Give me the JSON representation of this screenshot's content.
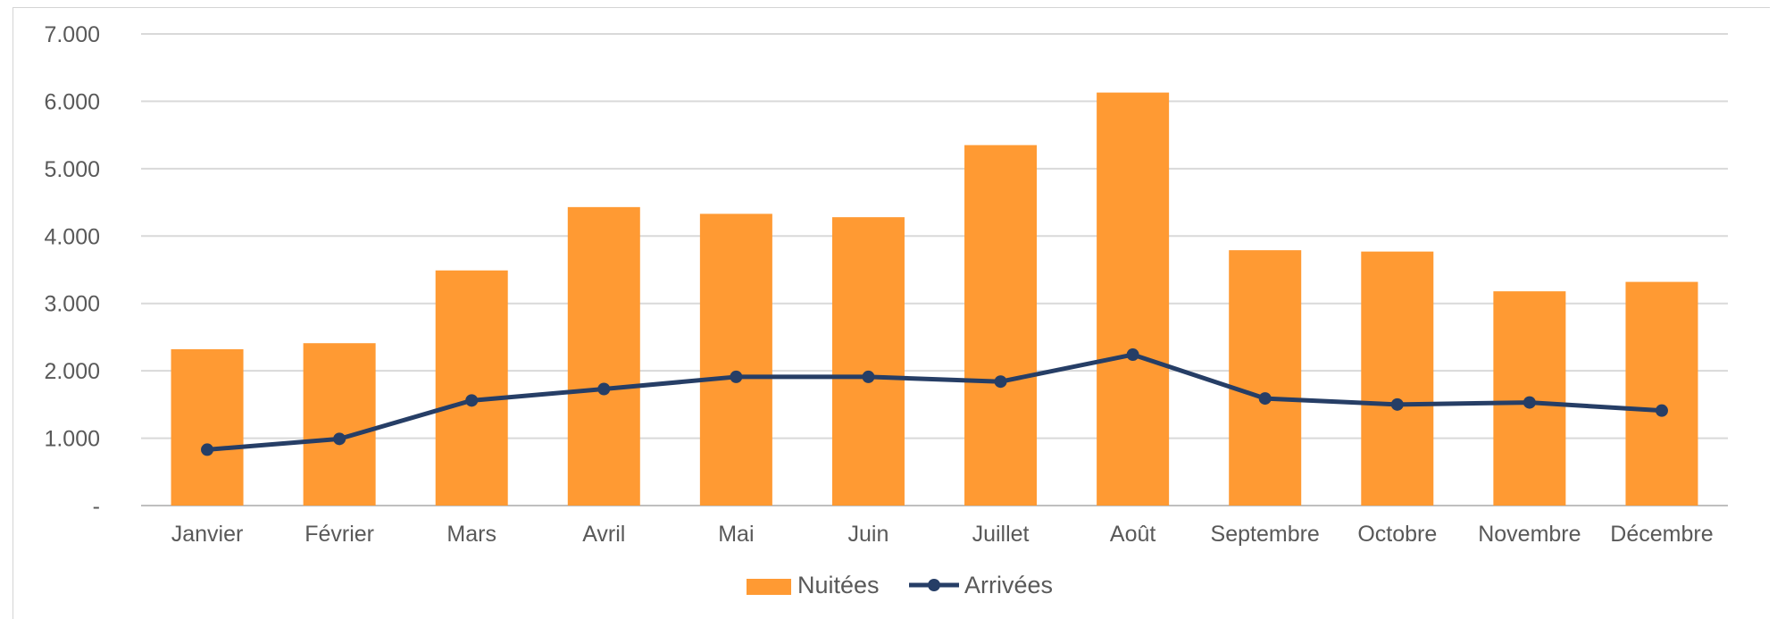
{
  "chart_data": {
    "type": "bar",
    "categories": [
      "Janvier",
      "Février",
      "Mars",
      "Avril",
      "Mai",
      "Juin",
      "Juillet",
      "Août",
      "Septembre",
      "Octobre",
      "Novembre",
      "Décembre"
    ],
    "series": [
      {
        "name": "Nuitées",
        "type": "bar",
        "color": "#FF9A33",
        "values": [
          2320,
          2410,
          3490,
          4430,
          4330,
          4280,
          5350,
          6130,
          3790,
          3770,
          3180,
          3320
        ]
      },
      {
        "name": "Arrivées",
        "type": "line",
        "color": "#263E66",
        "values": [
          830,
          990,
          1560,
          1730,
          1910,
          1910,
          1840,
          2240,
          1590,
          1500,
          1530,
          1410
        ]
      }
    ],
    "y_ticks": [
      "-",
      "1.000",
      "2.000",
      "3.000",
      "4.000",
      "5.000",
      "6.000",
      "7.000"
    ],
    "ylim": [
      0,
      7000
    ],
    "grid": true,
    "legend_position": "bottom",
    "title": "",
    "xlabel": "",
    "ylabel": ""
  }
}
